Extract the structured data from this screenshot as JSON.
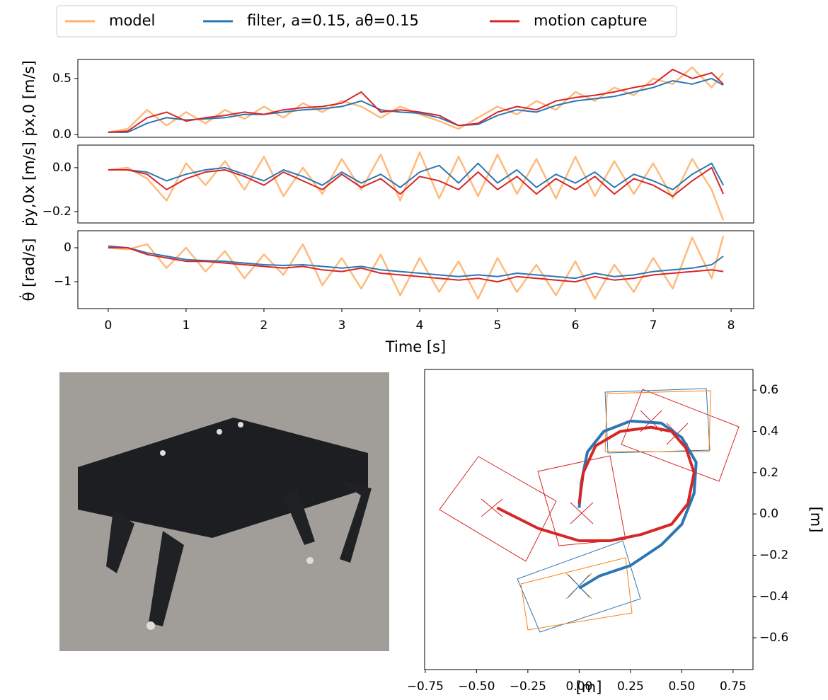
{
  "chart_data": [
    {
      "type": "line",
      "ylabel": "ṗx,0 [m/s]",
      "x": [
        0,
        0.25,
        0.5,
        0.75,
        1,
        1.25,
        1.5,
        1.75,
        2,
        2.25,
        2.5,
        2.75,
        3,
        3.25,
        3.5,
        3.75,
        4,
        4.25,
        4.5,
        4.75,
        5,
        5.25,
        5.5,
        5.75,
        6,
        6.25,
        6.5,
        6.75,
        7,
        7.25,
        7.5,
        7.75,
        7.9
      ],
      "xlim": [
        -0.39,
        8.29
      ],
      "ylim": [
        -0.025,
        0.67
      ],
      "yticks": [
        {
          "value": 0,
          "label": "0.0"
        },
        0.5
      ],
      "series": [
        {
          "name": "model",
          "color": "#ffb26e",
          "values": [
            0.02,
            0.05,
            0.22,
            0.08,
            0.2,
            0.1,
            0.22,
            0.14,
            0.25,
            0.15,
            0.28,
            0.2,
            0.3,
            0.25,
            0.15,
            0.25,
            0.18,
            0.12,
            0.05,
            0.15,
            0.25,
            0.18,
            0.3,
            0.22,
            0.38,
            0.3,
            0.42,
            0.35,
            0.5,
            0.45,
            0.6,
            0.42,
            0.55
          ]
        },
        {
          "name": "filter, a=0.15, aθ=0.15",
          "color": "#2a77b4",
          "values": [
            0.02,
            0.02,
            0.1,
            0.15,
            0.13,
            0.14,
            0.15,
            0.18,
            0.18,
            0.2,
            0.22,
            0.23,
            0.25,
            0.3,
            0.22,
            0.2,
            0.19,
            0.15,
            0.08,
            0.09,
            0.17,
            0.22,
            0.2,
            0.26,
            0.3,
            0.32,
            0.34,
            0.38,
            0.42,
            0.48,
            0.45,
            0.5,
            0.44
          ]
        },
        {
          "name": "motion capture",
          "color": "#d62628",
          "values": [
            0.02,
            0.03,
            0.15,
            0.2,
            0.12,
            0.15,
            0.17,
            0.2,
            0.18,
            0.22,
            0.24,
            0.25,
            0.28,
            0.38,
            0.2,
            0.22,
            0.2,
            0.17,
            0.08,
            0.1,
            0.2,
            0.25,
            0.22,
            0.3,
            0.33,
            0.35,
            0.38,
            0.42,
            0.45,
            0.58,
            0.5,
            0.55,
            0.45
          ]
        }
      ]
    },
    {
      "type": "line",
      "ylabel": "ṗy,0x [m/s]",
      "x": [
        0,
        0.25,
        0.5,
        0.75,
        1,
        1.25,
        1.5,
        1.75,
        2,
        2.25,
        2.5,
        2.75,
        3,
        3.25,
        3.5,
        3.75,
        4,
        4.25,
        4.5,
        4.75,
        5,
        5.25,
        5.5,
        5.75,
        6,
        6.25,
        6.5,
        6.75,
        7,
        7.25,
        7.5,
        7.75,
        7.9
      ],
      "xlim": [
        -0.39,
        8.29
      ],
      "ylim": [
        -0.252,
        0.103
      ],
      "yticks": [
        {
          "value": -0.2,
          "label": "−0.2"
        },
        {
          "value": 0,
          "label": "0.0"
        }
      ],
      "series": [
        {
          "color": "#ffb26e",
          "values": [
            -0.01,
            0.0,
            -0.05,
            -0.15,
            0.02,
            -0.08,
            0.03,
            -0.1,
            0.05,
            -0.13,
            0.0,
            -0.12,
            0.04,
            -0.1,
            0.06,
            -0.15,
            0.07,
            -0.14,
            0.05,
            -0.13,
            0.06,
            -0.12,
            0.04,
            -0.14,
            0.05,
            -0.13,
            0.03,
            -0.12,
            0.02,
            -0.14,
            0.04,
            -0.1,
            -0.24
          ]
        },
        {
          "color": "#2a77b4",
          "values": [
            -0.01,
            -0.01,
            -0.02,
            -0.06,
            -0.03,
            -0.01,
            0.0,
            -0.03,
            -0.06,
            -0.01,
            -0.04,
            -0.08,
            -0.02,
            -0.07,
            -0.03,
            -0.09,
            -0.02,
            0.01,
            -0.07,
            0.02,
            -0.07,
            -0.01,
            -0.09,
            -0.03,
            -0.07,
            -0.02,
            -0.09,
            -0.03,
            -0.06,
            -0.1,
            -0.03,
            0.02,
            -0.08
          ]
        },
        {
          "color": "#d62628",
          "values": [
            -0.01,
            -0.01,
            -0.03,
            -0.1,
            -0.05,
            -0.02,
            -0.01,
            -0.04,
            -0.08,
            -0.02,
            -0.06,
            -0.1,
            -0.03,
            -0.09,
            -0.05,
            -0.12,
            -0.04,
            -0.06,
            -0.1,
            -0.02,
            -0.1,
            -0.04,
            -0.12,
            -0.05,
            -0.1,
            -0.04,
            -0.12,
            -0.05,
            -0.08,
            -0.13,
            -0.06,
            0.0,
            -0.12
          ]
        }
      ]
    },
    {
      "type": "line",
      "ylabel": "θ̇ [rad/s]",
      "xlabel": "Time [s]",
      "x": [
        0,
        0.25,
        0.5,
        0.75,
        1,
        1.25,
        1.5,
        1.75,
        2,
        2.25,
        2.5,
        2.75,
        3,
        3.25,
        3.5,
        3.75,
        4,
        4.25,
        4.5,
        4.75,
        5,
        5.25,
        5.5,
        5.75,
        6,
        6.25,
        6.5,
        6.75,
        7,
        7.25,
        7.5,
        7.75,
        7.9
      ],
      "xlim": [
        -0.39,
        8.29
      ],
      "xticks": [
        0,
        1,
        2,
        3,
        4,
        5,
        6,
        7,
        8
      ],
      "ylim": [
        -1.79,
        0.5
      ],
      "yticks": [
        {
          "value": -1,
          "label": "−1"
        },
        0
      ],
      "series": [
        {
          "color": "#ffb26e",
          "values": [
            0,
            -0.05,
            0.1,
            -0.6,
            0.0,
            -0.7,
            -0.1,
            -0.9,
            -0.2,
            -0.8,
            0.1,
            -1.1,
            -0.3,
            -1.2,
            -0.2,
            -1.4,
            -0.3,
            -1.3,
            -0.4,
            -1.5,
            -0.3,
            -1.3,
            -0.5,
            -1.4,
            -0.4,
            -1.5,
            -0.5,
            -1.3,
            -0.3,
            -1.2,
            0.3,
            -0.9,
            0.35
          ]
        },
        {
          "color": "#2a77b4",
          "values": [
            0.05,
            0,
            -0.15,
            -0.25,
            -0.35,
            -0.38,
            -0.4,
            -0.45,
            -0.5,
            -0.52,
            -0.5,
            -0.55,
            -0.6,
            -0.55,
            -0.65,
            -0.7,
            -0.75,
            -0.8,
            -0.85,
            -0.8,
            -0.85,
            -0.75,
            -0.8,
            -0.85,
            -0.9,
            -0.75,
            -0.85,
            -0.8,
            -0.7,
            -0.65,
            -0.6,
            -0.5,
            -0.25
          ]
        },
        {
          "color": "#d62628",
          "values": [
            0,
            0,
            -0.2,
            -0.3,
            -0.4,
            -0.4,
            -0.45,
            -0.5,
            -0.55,
            -0.6,
            -0.55,
            -0.65,
            -0.7,
            -0.6,
            -0.75,
            -0.8,
            -0.85,
            -0.9,
            -0.95,
            -0.9,
            -1.0,
            -0.85,
            -0.9,
            -0.95,
            -1.0,
            -0.85,
            -0.95,
            -0.9,
            -0.8,
            -0.75,
            -0.7,
            -0.65,
            -0.7
          ]
        }
      ]
    },
    {
      "type": "trajectory",
      "xlabel": "[m]",
      "ylabel": "[m]",
      "xlim": [
        -0.753,
        0.847
      ],
      "ylim": [
        -0.754,
        0.7
      ],
      "xticks": [
        {
          "value": -0.75,
          "label": "−0.75"
        },
        {
          "value": -0.5,
          "label": "−0.50"
        },
        {
          "value": -0.25,
          "label": "−0.25"
        },
        {
          "value": 0,
          "label": "0.00"
        },
        0.25,
        {
          "value": 0.5,
          "label": "0.50"
        },
        0.75
      ],
      "yticks": [
        {
          "value": -0.6,
          "label": "−0.6"
        },
        {
          "value": -0.4,
          "label": "−0.4"
        },
        {
          "value": -0.2,
          "label": "−0.2"
        },
        {
          "value": 0,
          "label": "0.0"
        },
        0.2,
        0.4,
        0.6
      ],
      "series": [
        {
          "color": "#2a77b4",
          "x": [
            0,
            0.1,
            0.25,
            0.4,
            0.5,
            0.56,
            0.57,
            0.5,
            0.4,
            0.25,
            0.12,
            0.04,
            0.01,
            0.0
          ],
          "values": [
            -0.36,
            -0.3,
            -0.25,
            -0.15,
            -0.05,
            0.1,
            0.25,
            0.37,
            0.44,
            0.45,
            0.4,
            0.3,
            0.15,
            0.03
          ]
        },
        {
          "color": "#d62628",
          "x": [
            -0.4,
            -0.2,
            0,
            0.15,
            0.3,
            0.45,
            0.53,
            0.56,
            0.52,
            0.45,
            0.35,
            0.2,
            0.08,
            0.02,
            0.0
          ],
          "values": [
            0.03,
            -0.07,
            -0.13,
            -0.13,
            -0.1,
            -0.05,
            0.05,
            0.2,
            0.32,
            0.4,
            0.42,
            0.4,
            0.33,
            0.2,
            0.05
          ]
        }
      ]
    }
  ]
}
